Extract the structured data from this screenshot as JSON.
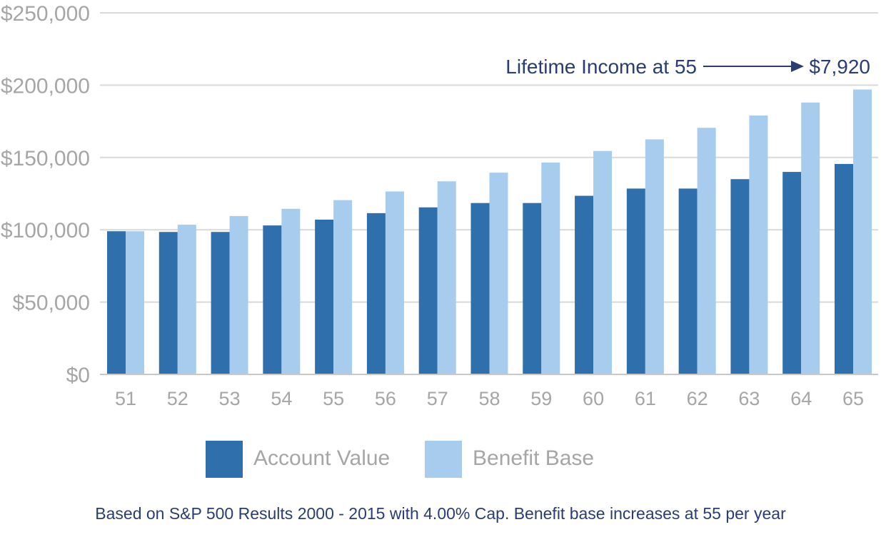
{
  "chart_data": {
    "type": "bar",
    "categories": [
      "51",
      "52",
      "53",
      "54",
      "55",
      "56",
      "57",
      "58",
      "59",
      "60",
      "61",
      "62",
      "63",
      "64",
      "65"
    ],
    "series": [
      {
        "name": "Account Value",
        "color": "#2e6fac",
        "values": [
          99000,
          98500,
          98500,
          103000,
          107000,
          111500,
          115500,
          118500,
          118500,
          123500,
          128500,
          128500,
          135000,
          140000,
          145500
        ]
      },
      {
        "name": "Benefit Base",
        "color": "#a7cced",
        "values": [
          99000,
          103500,
          109500,
          114500,
          120500,
          126500,
          133500,
          139500,
          146500,
          154500,
          162500,
          170500,
          179000,
          188000,
          197000
        ]
      }
    ],
    "ylim": [
      0,
      250000
    ],
    "y_ticks": [
      {
        "value": 0,
        "label": "$0"
      },
      {
        "value": 50000,
        "label": "$50,000"
      },
      {
        "value": 100000,
        "label": "$100,000"
      },
      {
        "value": 150000,
        "label": "$150,000"
      },
      {
        "value": 200000,
        "label": "$200,000"
      },
      {
        "value": 250000,
        "label": "$250,000"
      }
    ],
    "grid": true,
    "legend_position": "bottom",
    "annotation": {
      "text": "Lifetime Income at 55",
      "value_label": "$7,920",
      "color": "#2a3d73"
    },
    "footnote": "Based on S&P 500 Results 2000 - 2015 with 4.00% Cap. Benefit base increases at 55 per year"
  }
}
